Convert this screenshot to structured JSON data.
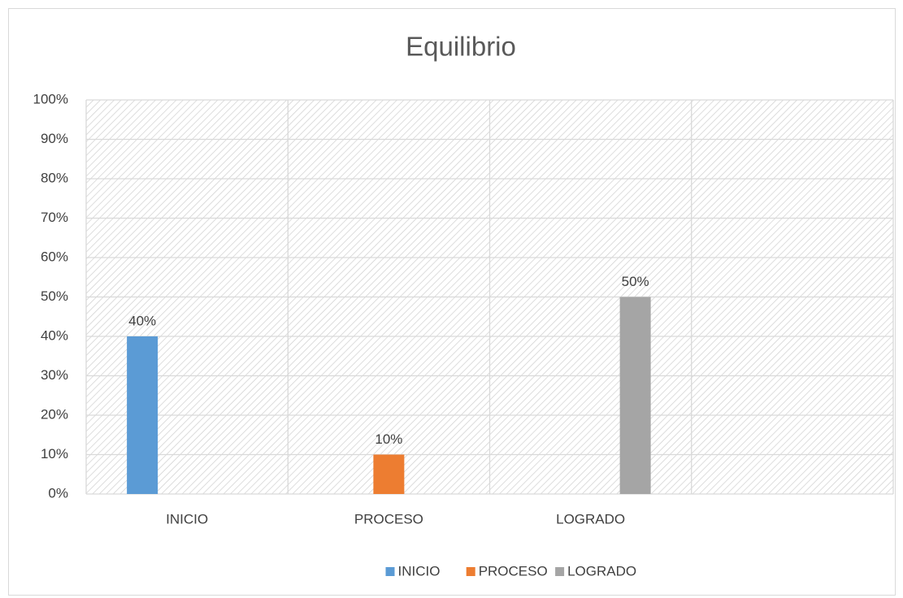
{
  "chart_data": {
    "type": "bar",
    "title": "Equilibrio",
    "categories": [
      "INICIO",
      "PROCESO",
      "LOGRADO",
      null
    ],
    "series": [
      {
        "name": "INICIO",
        "color": "#5b9bd5",
        "values": [
          40,
          null,
          null,
          null
        ],
        "value_labels": [
          "40%",
          null,
          null,
          null
        ]
      },
      {
        "name": "PROCESO",
        "color": "#ed7d31",
        "values": [
          null,
          10,
          null,
          null
        ],
        "value_labels": [
          null,
          "10%",
          null,
          null
        ]
      },
      {
        "name": "LOGRADO",
        "color": "#a5a5a5",
        "values": [
          null,
          null,
          50,
          null
        ],
        "value_labels": [
          null,
          null,
          "50%",
          null
        ]
      }
    ],
    "ylim": [
      0,
      100
    ],
    "yticks": [
      {
        "value": 0,
        "label": "0%"
      },
      {
        "value": 10,
        "label": "10%"
      },
      {
        "value": 20,
        "label": "20%"
      },
      {
        "value": 30,
        "label": "30%"
      },
      {
        "value": 40,
        "label": "40%"
      },
      {
        "value": 50,
        "label": "50%"
      },
      {
        "value": 60,
        "label": "60%"
      },
      {
        "value": 70,
        "label": "70%"
      },
      {
        "value": 80,
        "label": "80%"
      },
      {
        "value": 90,
        "label": "90%"
      },
      {
        "value": 100,
        "label": "100%"
      }
    ],
    "grid": true,
    "legend": "bottom"
  }
}
